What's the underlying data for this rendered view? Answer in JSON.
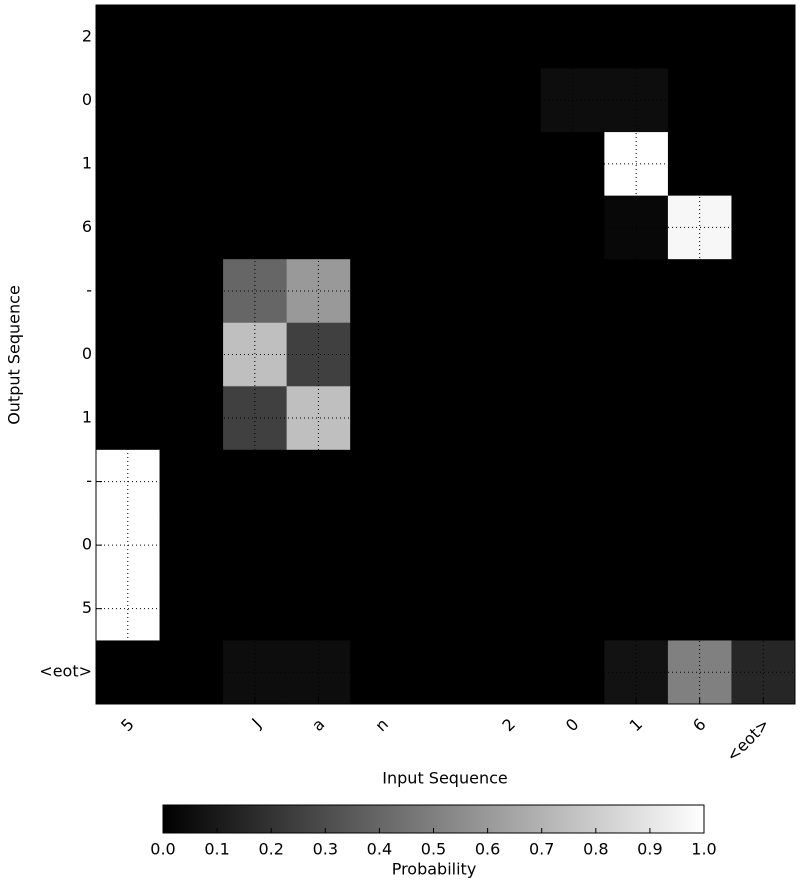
{
  "chart_data": {
    "type": "heatmap",
    "x_label": "Input Sequence",
    "y_label": "Output Sequence",
    "x_categories": [
      "5",
      null,
      "J",
      "a",
      "n",
      null,
      "2",
      "0",
      "1",
      "6",
      "<eot>"
    ],
    "y_categories": [
      "2",
      "0",
      "1",
      "6",
      "-",
      "0",
      "1",
      "-",
      "0",
      "5",
      "<eot>"
    ],
    "z": [
      [
        0,
        0,
        0,
        0,
        0,
        0,
        0,
        0,
        0,
        0,
        0
      ],
      [
        0,
        0,
        0,
        0,
        0,
        0,
        0,
        0.05,
        0.05,
        0,
        0
      ],
      [
        0,
        0,
        0,
        0,
        0,
        0,
        0,
        0,
        1.0,
        0,
        0
      ],
      [
        0,
        0,
        0,
        0,
        0,
        0,
        0,
        0,
        0.03,
        0.97,
        0
      ],
      [
        0,
        0,
        0.4,
        0.6,
        0,
        0,
        0,
        0,
        0,
        0,
        0
      ],
      [
        0,
        0,
        0.75,
        0.25,
        0,
        0,
        0,
        0,
        0,
        0,
        0
      ],
      [
        0,
        0,
        0.25,
        0.75,
        0,
        0,
        0,
        0,
        0,
        0,
        0
      ],
      [
        1.0,
        0,
        0,
        0,
        0,
        0,
        0,
        0,
        0,
        0,
        0
      ],
      [
        1.0,
        0,
        0,
        0,
        0,
        0,
        0,
        0,
        0,
        0,
        0
      ],
      [
        1.0,
        0,
        0,
        0,
        0,
        0,
        0,
        0,
        0,
        0,
        0
      ],
      [
        0,
        0,
        0.05,
        0.05,
        0,
        0,
        0,
        0,
        0.07,
        0.5,
        0.15
      ]
    ],
    "colormap": "gray",
    "grid": true,
    "colorbar": {
      "label": "Probability",
      "zlim": [
        0,
        1
      ],
      "ticks": [
        {
          "value": 0,
          "label": "0.0"
        },
        {
          "value": 0.1,
          "label": "0.1"
        },
        {
          "value": 0.2,
          "label": "0.2"
        },
        {
          "value": 0.3,
          "label": "0.3"
        },
        {
          "value": 0.4,
          "label": "0.4"
        },
        {
          "value": 0.5,
          "label": "0.5"
        },
        {
          "value": 0.6,
          "label": "0.6"
        },
        {
          "value": 0.7,
          "label": "0.7"
        },
        {
          "value": 0.8,
          "label": "0.8"
        },
        {
          "value": 0.9,
          "label": "0.9"
        },
        {
          "value": 1,
          "label": "1.0"
        }
      ]
    }
  }
}
